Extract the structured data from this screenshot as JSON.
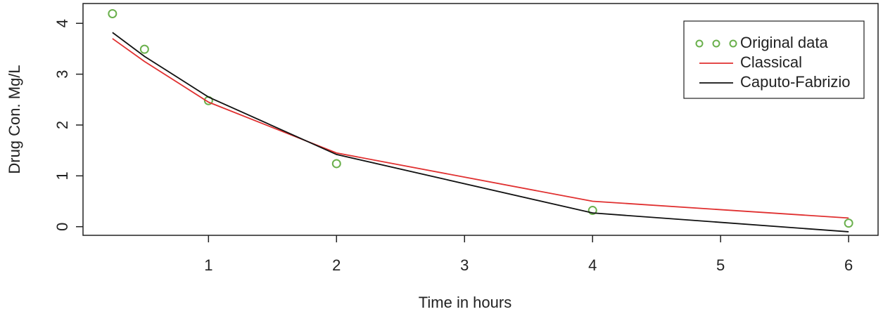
{
  "chart_data": {
    "type": "line",
    "x_label": "Time in hours",
    "y_label": "Drug Con. Mg/L",
    "x": [
      0.25,
      0.5,
      1,
      2,
      4,
      6
    ],
    "series": [
      {
        "name": "Original data",
        "color": "#6ab04c",
        "marker": "circle",
        "values": [
          4.19,
          3.49,
          2.48,
          1.24,
          0.32,
          0.07
        ]
      },
      {
        "name": "Classical",
        "color": "#e03030",
        "marker": "none",
        "values": [
          3.7,
          3.25,
          2.45,
          1.45,
          0.5,
          0.17
        ]
      },
      {
        "name": "Caputo-Fabrizio",
        "color": "#111111",
        "marker": "none",
        "values": [
          3.82,
          3.35,
          2.55,
          1.42,
          0.27,
          -0.1
        ]
      }
    ],
    "xlim": [
      0.02,
      6.23
    ],
    "xticks": [
      1,
      2,
      3,
      4,
      5,
      6
    ],
    "ylim": [
      -0.17,
      4.39
    ],
    "yticks": [
      0,
      1,
      2,
      3,
      4
    ],
    "legend": "top-right"
  }
}
